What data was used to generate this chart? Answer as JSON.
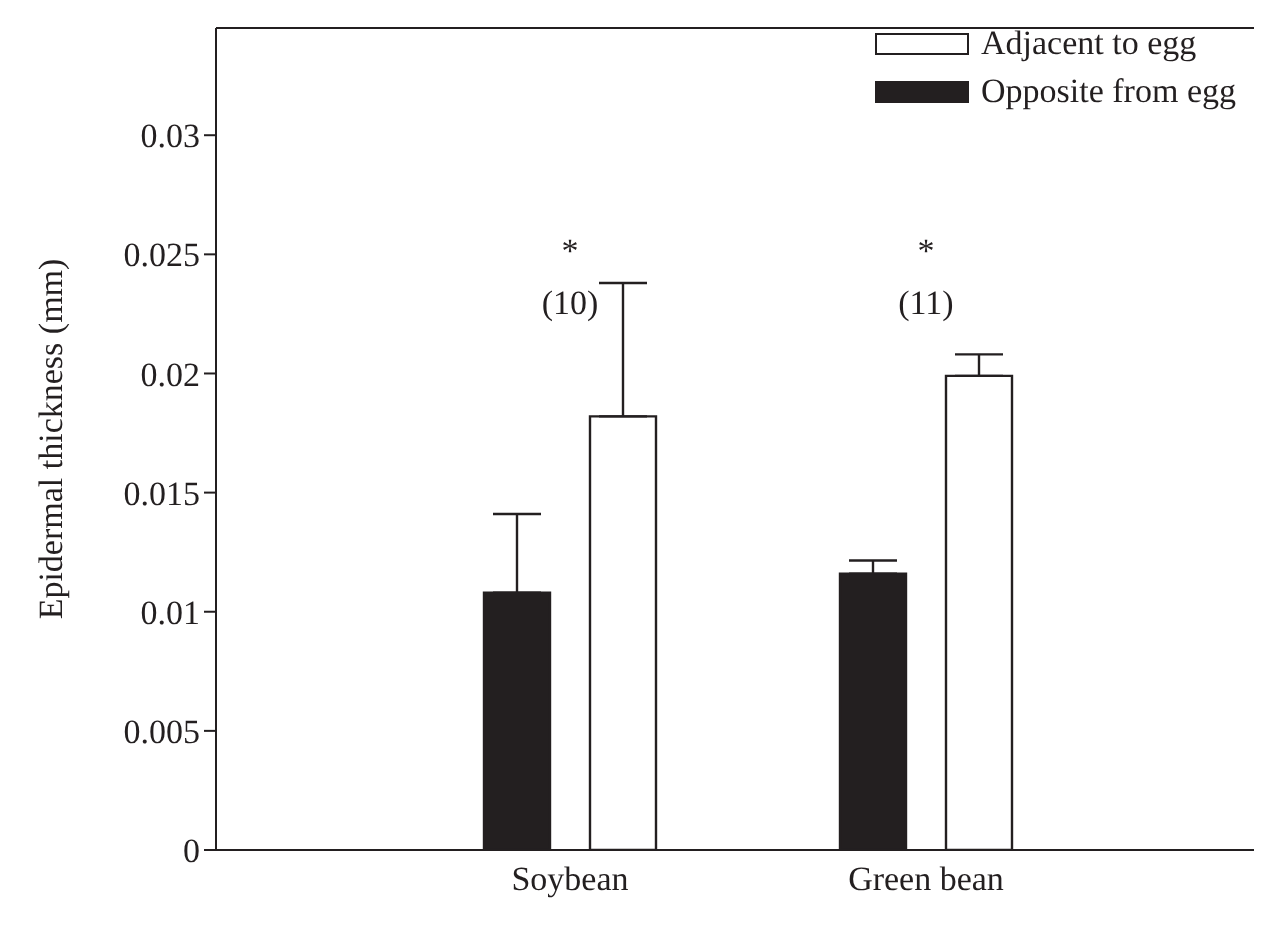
{
  "chart_data": {
    "type": "bar",
    "ylabel": "Epidermal thickness (mm)",
    "categories": [
      "Soybean",
      "Green bean"
    ],
    "series": [
      {
        "name": "Opposite from egg",
        "color": "#231f20",
        "values": [
          0.0108,
          0.0116
        ],
        "errors": [
          [
            0.0108,
            0.0141
          ],
          [
            0.0116,
            0.01215
          ]
        ]
      },
      {
        "name": "Adjacent to egg",
        "color": "#ffffff",
        "values": [
          0.0182,
          0.0199
        ],
        "errors": [
          [
            0.0182,
            0.0238
          ],
          [
            0.0199,
            0.0208
          ]
        ]
      }
    ],
    "ylim": [
      0,
      0.0345
    ],
    "yticks": [
      0,
      0.005,
      0.01,
      0.015,
      0.02,
      0.025,
      0.03
    ],
    "grid": false,
    "legend": "top right",
    "annotations": [
      "*",
      "(10)",
      "*",
      "(11)"
    ]
  }
}
